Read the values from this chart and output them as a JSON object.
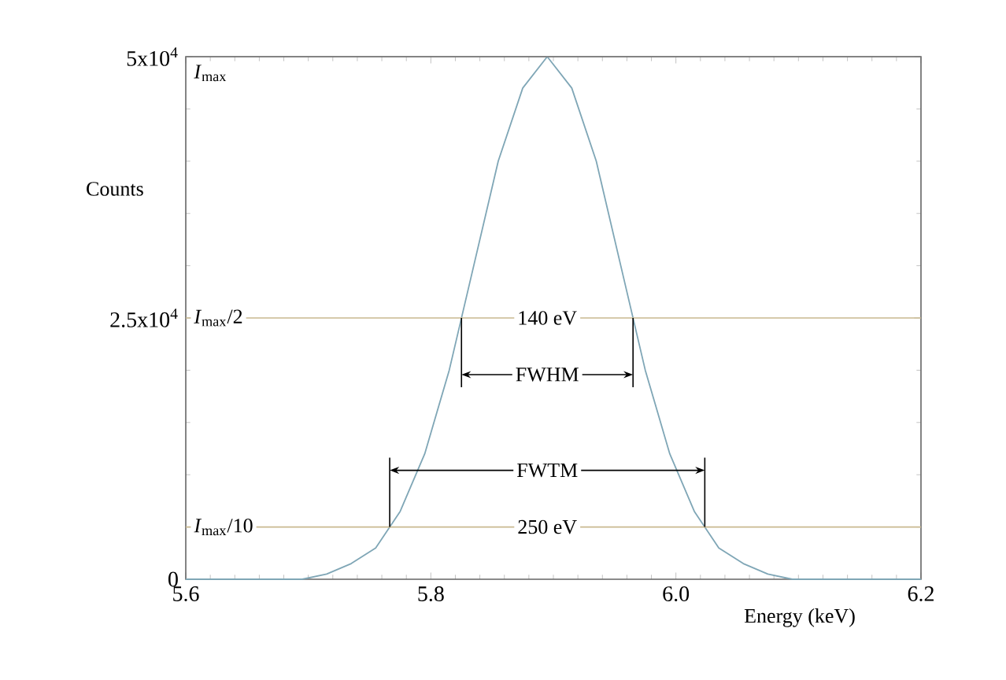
{
  "chart_data": {
    "type": "line",
    "xlabel": "Energy (keV)",
    "ylabel": "Counts",
    "series": [
      {
        "color": "#7fa6b6",
        "x": [
          5.6,
          5.65,
          5.675,
          5.695,
          5.715,
          5.735,
          5.755,
          5.775,
          5.795,
          5.815,
          5.835,
          5.855,
          5.875,
          5.895,
          5.915,
          5.935,
          5.955,
          5.975,
          5.995,
          6.015,
          6.035,
          6.055,
          6.075,
          6.095,
          6.14,
          6.2
        ],
        "values": [
          0,
          0,
          0,
          0,
          500,
          1500,
          3000,
          6500,
          12000,
          20000,
          30000,
          40000,
          47000,
          50000,
          47000,
          40000,
          30000,
          20000,
          12000,
          6500,
          3000,
          1500,
          500,
          0,
          0,
          0
        ]
      }
    ],
    "marker": "none",
    "line_style": "solid",
    "xlim": [
      5.6,
      6.2
    ],
    "ylim": [
      0,
      50000
    ],
    "xticks": [
      5.6,
      5.8,
      {
        "value": 6.0,
        "label": "6.0"
      },
      6.2
    ],
    "yticks": [
      0,
      {
        "value": 25000,
        "label": "2.5x10$^{4}$"
      },
      {
        "value": 50000,
        "label": "5x10$^{4}$"
      }
    ],
    "ref_lines": [
      {
        "axis": "y",
        "value": 50000,
        "label": "*I*$_{max}$",
        "color": "#808080"
      },
      {
        "axis": "y",
        "value": 25000,
        "label": "*I*$_{max}$/2",
        "color": "#c9b98f"
      },
      {
        "axis": "y",
        "value": 5000,
        "label": "*I*$_{max}$/10",
        "color": "#c9b98f"
      }
    ],
    "annotations": [
      {
        "text": "140 eV",
        "x": 5.895,
        "y": 25000
      },
      "FWHM",
      "FWTM",
      {
        "text": "250 eV",
        "x": 5.895,
        "y": 5000
      }
    ]
  }
}
